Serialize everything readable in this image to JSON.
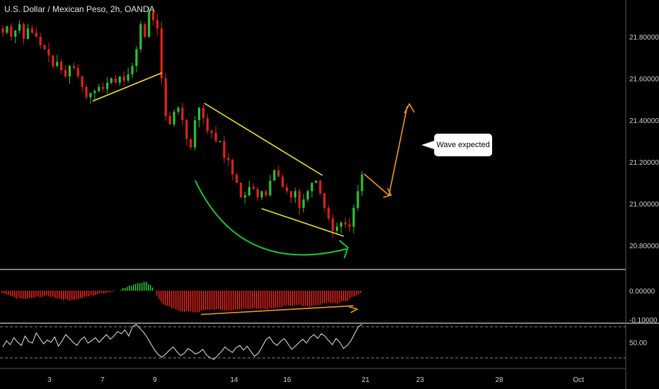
{
  "header": {
    "title": "U.S. Dollar / Mexican Peso, 2h, OANDA"
  },
  "annotation": {
    "callout_text": "Wave expected"
  },
  "colors": {
    "background": "#000000",
    "bull": "#2fbf38",
    "bear": "#e0221c",
    "trendline": "#f5e51f",
    "projection": "#f39a1c",
    "curve": "#1ec72a",
    "oscillator": "#e8e8e8",
    "divider": "#ffffff"
  },
  "chart_data": [
    {
      "type": "candlestick",
      "panel": "price",
      "title": "U.S. Dollar / Mexican Peso, 2h, OANDA",
      "y_ticks": [
        "21.80000",
        "21.60000",
        "21.40000",
        "21.20000",
        "21.00000",
        "20.80000"
      ],
      "y_tick_values": [
        21.8,
        21.6,
        21.4,
        21.2,
        21.0,
        20.8
      ],
      "ylim": [
        20.71,
        22.0
      ],
      "x_ticks": [
        "3",
        "7",
        "9",
        "14",
        "16",
        "21",
        "23",
        "28",
        "Oct"
      ],
      "path_close": [
        21.82,
        21.85,
        21.8,
        21.83,
        21.86,
        21.79,
        21.84,
        21.82,
        21.8,
        21.76,
        21.74,
        21.71,
        21.66,
        21.68,
        21.64,
        21.61,
        21.66,
        21.65,
        21.61,
        21.56,
        21.51,
        21.53,
        21.54,
        21.56,
        21.55,
        21.58,
        21.6,
        21.58,
        21.61,
        21.59,
        21.62,
        21.66,
        21.74,
        21.86,
        21.8,
        21.92,
        21.88,
        21.84,
        21.6,
        21.42,
        21.38,
        21.44,
        21.46,
        21.4,
        21.31,
        21.27,
        21.4,
        21.46,
        21.41,
        21.35,
        21.34,
        21.3,
        21.3,
        21.22,
        21.21,
        21.14,
        21.1,
        21.03,
        21.04,
        21.08,
        21.07,
        21.03,
        21.06,
        21.04,
        21.11,
        21.16,
        21.13,
        21.08,
        21.06,
        21.03,
        21.06,
        20.98,
        21.02,
        21.06,
        21.1,
        21.11,
        21.05,
        20.98,
        20.93,
        20.87,
        20.89,
        20.91,
        20.9,
        20.89,
        20.98,
        21.06,
        21.14
      ],
      "annotations": [
        {
          "kind": "trendline",
          "color": "yellow",
          "from": [
            "6 Sep",
            21.49
          ],
          "to": [
            "9 Sep",
            21.63
          ]
        },
        {
          "kind": "trendline",
          "color": "yellow",
          "from": [
            "12 Sep",
            21.49
          ],
          "to": [
            "18 Sep",
            21.14
          ]
        },
        {
          "kind": "trendline",
          "color": "yellow",
          "from": [
            "15 Sep",
            21.0
          ],
          "to": [
            "20 Sep",
            20.85
          ]
        },
        {
          "kind": "curved-arrow",
          "color": "green"
        },
        {
          "kind": "projection-path",
          "color": "orange",
          "points": [
            21.14,
            21.04,
            21.48
          ]
        },
        {
          "kind": "callout",
          "text": "Wave expected"
        }
      ]
    },
    {
      "type": "histogram",
      "panel": "momentum",
      "y_ticks": [
        "0.00000",
        "-0.10000"
      ],
      "y_tick_values": [
        0.0,
        -0.1
      ],
      "zero_line": 0.0,
      "series": [
        {
          "values": [
            -0.01,
            -0.016,
            -0.022,
            -0.026,
            -0.029,
            -0.027,
            -0.023,
            -0.02,
            -0.018,
            -0.021,
            -0.026,
            -0.03,
            -0.032,
            -0.03,
            -0.027,
            -0.022,
            -0.017,
            -0.012,
            -0.008,
            -0.005,
            -0.002,
            0.004,
            0.01,
            0.018,
            0.026,
            0.03,
            0.028,
            0.01,
            -0.03,
            -0.05,
            -0.058,
            -0.066,
            -0.07,
            -0.072,
            -0.074,
            -0.073,
            -0.07,
            -0.065,
            -0.064,
            -0.066,
            -0.068,
            -0.067,
            -0.066,
            -0.063,
            -0.06,
            -0.062,
            -0.064,
            -0.063,
            -0.06,
            -0.057,
            -0.055,
            -0.053,
            -0.05,
            -0.048,
            -0.052,
            -0.055,
            -0.05,
            -0.045,
            -0.04,
            -0.04,
            -0.045,
            -0.038,
            -0.03,
            -0.02,
            -0.01
          ]
        }
      ],
      "annotations": [
        {
          "kind": "trendline",
          "color": "orange",
          "from": -0.082,
          "to": -0.052
        }
      ]
    },
    {
      "type": "line",
      "panel": "oscillator",
      "y_ticks": [
        "50.00"
      ],
      "y_tick_values": [
        50
      ],
      "ylim": [
        20,
        80
      ],
      "levels": [
        70,
        30
      ],
      "series": [
        {
          "values": [
            44,
            52,
            47,
            56,
            50,
            46,
            58,
            51,
            49,
            62,
            55,
            48,
            53,
            50,
            57,
            45,
            52,
            60,
            55,
            50,
            46,
            53,
            57,
            49,
            52,
            56,
            50,
            55,
            60,
            54,
            58,
            64,
            61,
            66,
            58,
            70,
            73,
            68,
            63,
            56,
            48,
            40,
            34,
            31,
            35,
            40,
            44,
            38,
            33,
            36,
            42,
            39,
            35,
            37,
            41,
            34,
            30,
            28,
            33,
            38,
            44,
            40,
            37,
            43,
            46,
            40,
            45,
            38,
            32,
            36,
            44,
            53,
            57,
            50,
            46,
            51,
            55,
            48,
            41,
            45,
            50,
            54,
            49,
            56,
            60,
            55,
            61,
            58,
            52,
            47,
            55,
            50,
            42,
            46,
            52,
            61,
            70,
            73
          ]
        }
      ]
    }
  ]
}
